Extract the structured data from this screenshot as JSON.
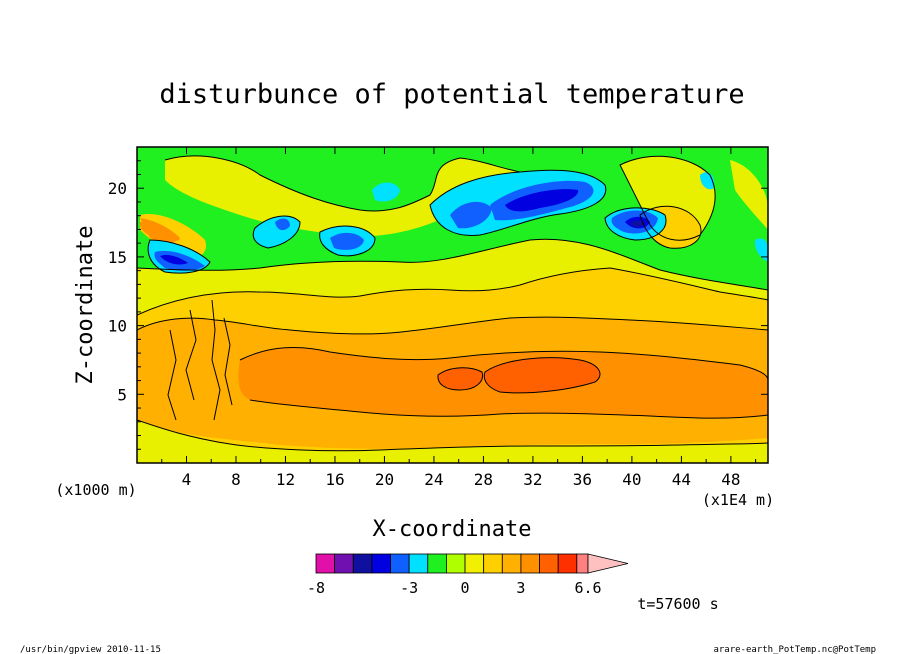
{
  "chart_data": {
    "type": "heatmap",
    "title": "disturbunce of potential temperature",
    "xlabel": "X-coordinate",
    "ylabel": "Z-coordinate",
    "x_unit": "(x1E4 m)",
    "y_unit": "(x1000 m)",
    "xlim": [
      0,
      51
    ],
    "ylim": [
      0,
      23
    ],
    "x_ticks": [
      "4",
      "8",
      "12",
      "16",
      "20",
      "24",
      "28",
      "32",
      "36",
      "40",
      "44",
      "48"
    ],
    "y_ticks": [
      "5",
      "10",
      "15",
      "20"
    ],
    "colorbar": {
      "levels": [
        -8,
        -7,
        -6,
        -5,
        -4,
        -3,
        -2,
        -1,
        0,
        1,
        2,
        3,
        4,
        5,
        6,
        6.6
      ],
      "tick_labels": [
        "-8",
        "-3",
        "0",
        "3",
        "6.6"
      ],
      "colors": [
        "#e010a8",
        "#e010a8",
        "#7010b0",
        "#1010a0",
        "#0000e0",
        "#1060ff",
        "#00e0ff",
        "#20f020",
        "#b0ff00",
        "#f0f000",
        "#ffd000",
        "#ffb000",
        "#ff9000",
        "#ff6000",
        "#ff3000",
        "#ff8080",
        "#ffc0c0"
      ]
    },
    "time_label": "t=57600 s",
    "features": [
      {
        "kind": "warm_band",
        "x": [
          6,
          51
        ],
        "z": [
          4,
          9
        ],
        "value": 3.5
      },
      {
        "kind": "warm_core",
        "x": [
          29,
          36
        ],
        "z": [
          5.5,
          7.5
        ],
        "value": 4.5
      },
      {
        "kind": "warm_core",
        "x": [
          25,
          29
        ],
        "z": [
          5.5,
          7
        ],
        "value": 4
      },
      {
        "kind": "cold_core",
        "x": [
          28,
          37
        ],
        "z": [
          17,
          21
        ],
        "value": -4.5
      },
      {
        "kind": "cold_core",
        "x": [
          38.5,
          43
        ],
        "z": [
          16,
          18.5
        ],
        "value": -5
      },
      {
        "kind": "cold_core",
        "x": [
          1.5,
          6.5
        ],
        "z": [
          13.5,
          16
        ],
        "value": -5
      },
      {
        "kind": "cold_core",
        "x": [
          15.5,
          18.5
        ],
        "z": [
          15,
          16.5
        ],
        "value": -4
      },
      {
        "kind": "warm_core",
        "x": [
          0,
          5
        ],
        "z": [
          15.5,
          18
        ],
        "value": 4
      }
    ]
  },
  "footer": {
    "left": "/usr/bin/gpview  2010-11-15",
    "right": "arare-earth_PotTemp.nc@PotTemp"
  }
}
